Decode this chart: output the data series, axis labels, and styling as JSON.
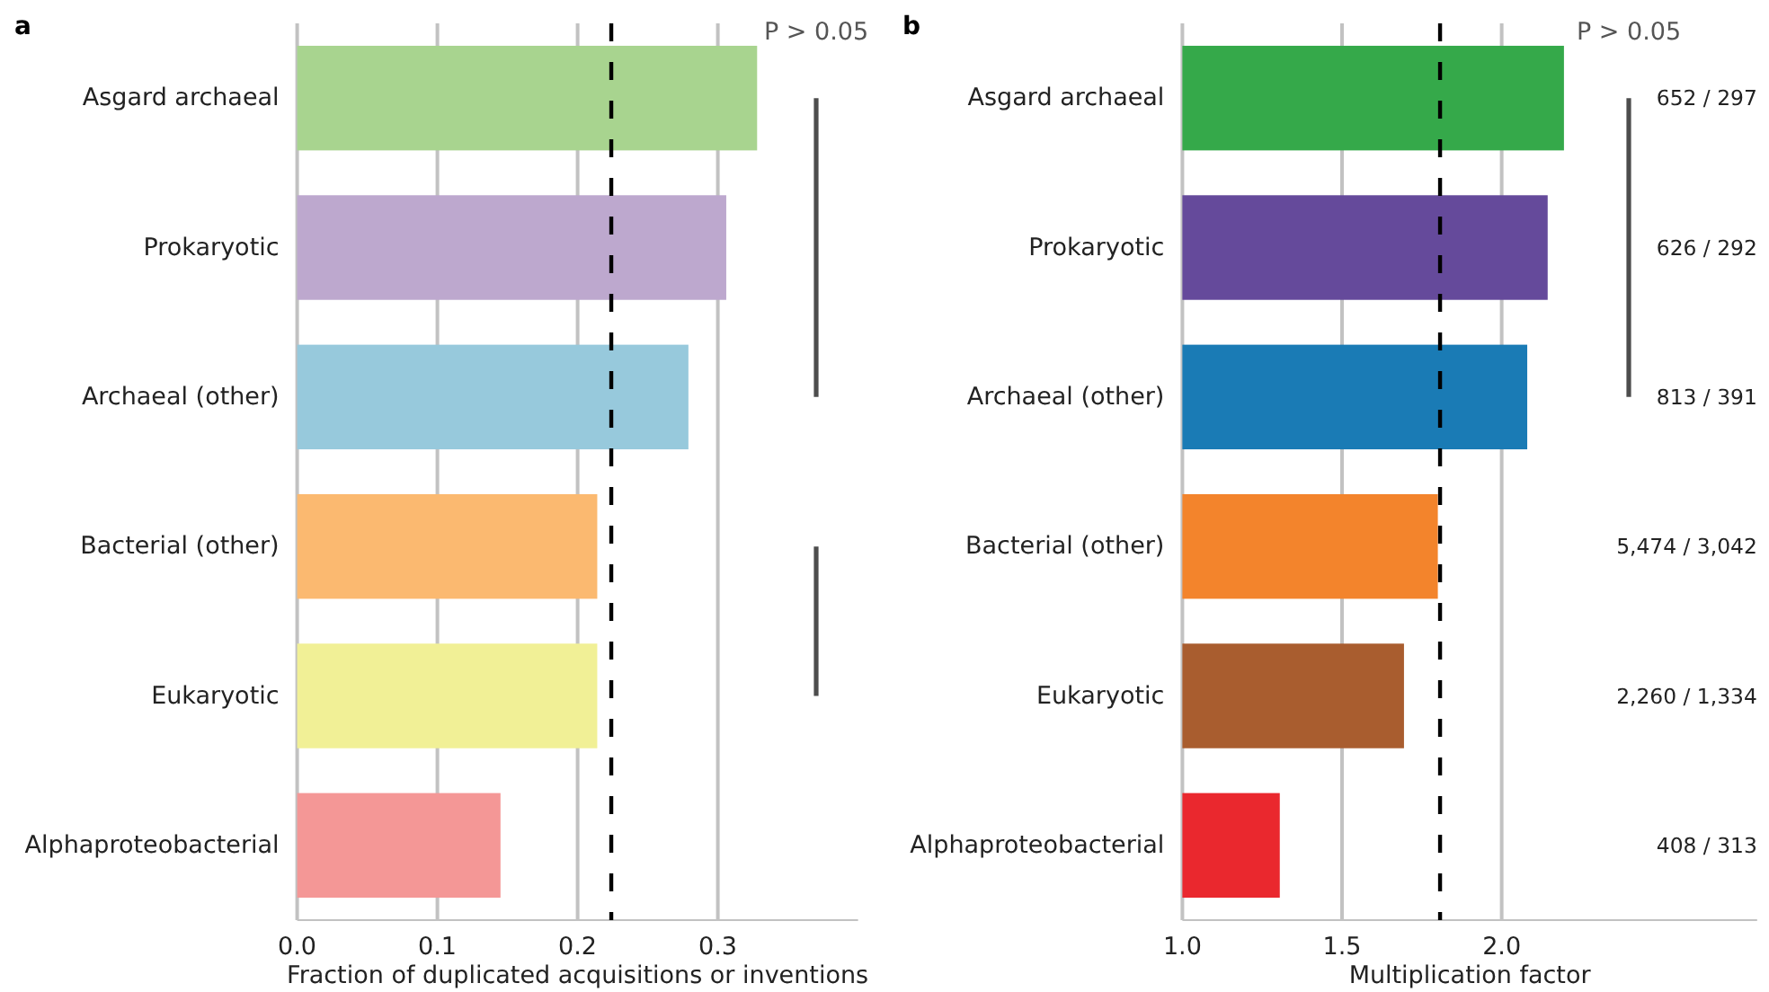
{
  "chart_data": [
    {
      "type": "bar",
      "title": "a",
      "orientation": "horizontal",
      "categories": [
        "Asgard archaeal",
        "Prokaryotic",
        "Archaeal (other)",
        "Bacterial (other)",
        "Eukaryotic",
        "Alphaproteobacterial"
      ],
      "values": [
        0.328,
        0.306,
        0.279,
        0.214,
        0.214,
        0.145
      ],
      "colors": [
        "#a8d48f",
        "#bda8ce",
        "#97c9dc",
        "#fbb970",
        "#f1f096",
        "#f49796"
      ],
      "xlabel": "Fraction of duplicated acquisitions or inventions",
      "xlim": [
        0,
        0.4
      ],
      "xticks": [
        {
          "value": 0,
          "label": "0.0"
        },
        0.1,
        0.2,
        0.3
      ],
      "grid": "x",
      "ref_lines": [
        {
          "axis": "x",
          "value": 0.224,
          "color": "#000000",
          "line_style": "dashed"
        }
      ],
      "annotations": [
        "P > 0.05"
      ]
    },
    {
      "type": "bar",
      "title": "b",
      "orientation": "horizontal",
      "categories": [
        "Asgard archaeal",
        "Prokaryotic",
        "Archaeal (other)",
        "Bacterial (other)",
        "Eukaryotic",
        "Alphaproteobacterial"
      ],
      "values": [
        2.195,
        2.144,
        2.08,
        1.8,
        1.694,
        1.305
      ],
      "colors": [
        "#35a94a",
        "#654a9b",
        "#1a7bb5",
        "#f3842c",
        "#a95d2f",
        "#ea282e"
      ],
      "xlabel": "Multiplication factor",
      "xlim": [
        1.0,
        2.8
      ],
      "xticks": [
        {
          "value": 1,
          "label": "1.0"
        },
        1.5,
        {
          "value": 2,
          "label": "2.0"
        }
      ],
      "grid": "x",
      "ref_lines": [
        {
          "axis": "x",
          "value": 1.807,
          "color": "#000000",
          "line_style": "dashed"
        }
      ],
      "annotations": [
        "P > 0.05",
        "652 / 297",
        "626 / 292",
        "813 / 391",
        "5,474 / 3,042",
        "2,260 / 1,334",
        "408 / 313"
      ]
    }
  ]
}
